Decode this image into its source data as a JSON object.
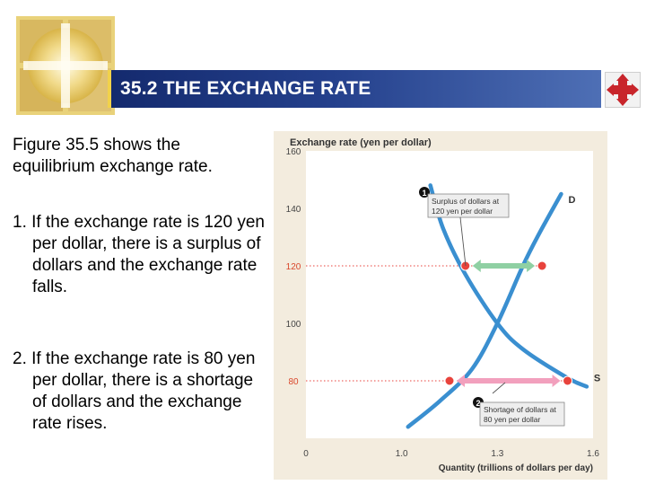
{
  "slide": {
    "title": "35.2 THE EXCHANGE RATE",
    "intro": "Figure 35.5 shows the equilibrium exchange rate.",
    "points": [
      {
        "number": "1.",
        "text": "If the exchange rate is 120 yen per dollar, there is a surplus of dollars and the exchange rate falls."
      },
      {
        "number": "2.",
        "text": "If the exchange rate is 80 yen per dollar, there is a shortage of dollars and the exchange rate rises."
      }
    ]
  },
  "colors": {
    "title_bar": "#24408c",
    "accent_bar": "#f2d24a",
    "curve": "#3a8fd0",
    "marker": "#e8433c",
    "surplus_arrow": "#8fd0a3",
    "shortage_arrow": "#f2a0bd",
    "highlight_tick": "#d9472b",
    "chart_background": "#f3ecde"
  },
  "chart_data": {
    "type": "line",
    "ylabel": "Exchange rate (yen per dollar)",
    "xlabel": "Quantity (trillions of dollars per day)",
    "y_ticks": [
      "160",
      "140",
      "120",
      "100",
      "80"
    ],
    "y_tick_values": [
      160,
      140,
      120,
      100,
      80
    ],
    "highlighted_y_ticks": [
      120,
      80
    ],
    "x_ticks": [
      "0",
      "1.0",
      "1.3",
      "1.6"
    ],
    "x_tick_values": [
      0.7,
      1.0,
      1.3,
      1.6
    ],
    "xlim": [
      0.7,
      1.6
    ],
    "ylim": [
      60,
      160
    ],
    "series": [
      {
        "name": "S",
        "points": [
          [
            1.09,
            148
          ],
          [
            1.13,
            133
          ],
          [
            1.2,
            117
          ],
          [
            1.3,
            100
          ],
          [
            1.38,
            91
          ],
          [
            1.52,
            81
          ],
          [
            1.58,
            78
          ]
        ]
      },
      {
        "name": "D",
        "points": [
          [
            1.02,
            64
          ],
          [
            1.12,
            73
          ],
          [
            1.22,
            84
          ],
          [
            1.3,
            100
          ],
          [
            1.38,
            120
          ],
          [
            1.43,
            131
          ],
          [
            1.5,
            145
          ]
        ]
      }
    ],
    "markers": [
      {
        "x": 1.2,
        "y": 120
      },
      {
        "x": 1.44,
        "y": 120
      },
      {
        "x": 1.15,
        "y": 80
      },
      {
        "x": 1.52,
        "y": 80
      }
    ],
    "arrows": [
      {
        "y": 120,
        "x_from": 1.2,
        "x_to": 1.44,
        "kind": "surplus"
      },
      {
        "y": 80,
        "x_from": 1.15,
        "x_to": 1.52,
        "kind": "shortage"
      }
    ],
    "annotations": [
      {
        "number": "1",
        "line1": "Surplus of dollars at",
        "line2": "120 yen per dollar"
      },
      {
        "number": "2",
        "line1": "Shortage of dollars at",
        "line2": "80 yen per dollar"
      }
    ]
  }
}
